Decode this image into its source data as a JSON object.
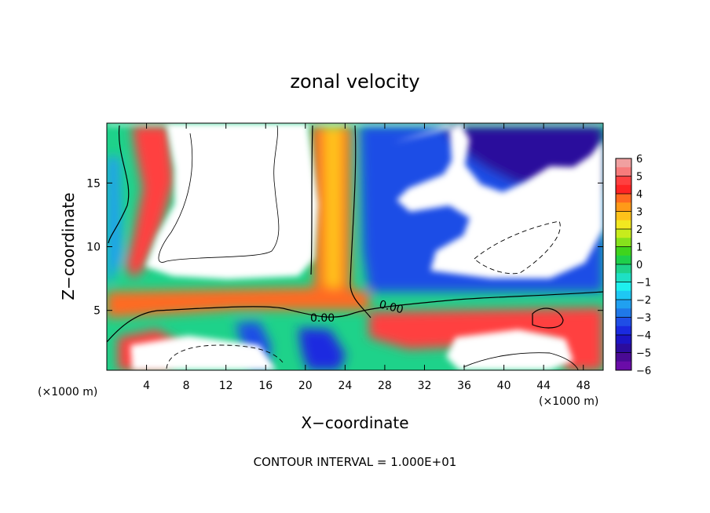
{
  "chart_data": {
    "type": "heatmap",
    "title": "zonal velocity",
    "xlabel": "X−coordinate",
    "ylabel": "Z−coordinate",
    "x_unit": "(×1000 m)",
    "y_unit": "(×1000 m)",
    "xlim": [
      0,
      50
    ],
    "ylim": [
      0.3,
      19.7
    ],
    "x_ticks": [
      "4",
      "8",
      "12",
      "16",
      "20",
      "24",
      "28",
      "32",
      "36",
      "40",
      "44",
      "48"
    ],
    "y_ticks": [
      "5",
      "10",
      "15"
    ],
    "colorbar": {
      "range": [
        -6,
        6
      ],
      "ticks": [
        "6",
        "5",
        "4",
        "3",
        "2",
        "1",
        "0",
        "−1",
        "−2",
        "−3",
        "−4",
        "−5",
        "−6"
      ],
      "levels": [
        {
          "value": 6,
          "color": "#f0a0a0"
        },
        {
          "value": 5.5,
          "color": "#f77b7b"
        },
        {
          "value": 5,
          "color": "#ff4040"
        },
        {
          "value": 4.5,
          "color": "#ff2424"
        },
        {
          "value": 4,
          "color": "#ff6a20"
        },
        {
          "value": 3.5,
          "color": "#ff9a18"
        },
        {
          "value": 3,
          "color": "#ffc21a"
        },
        {
          "value": 2.5,
          "color": "#f2e820"
        },
        {
          "value": 2,
          "color": "#c8ec1c"
        },
        {
          "value": 1.5,
          "color": "#86e21c"
        },
        {
          "value": 1,
          "color": "#3fd41c"
        },
        {
          "value": 0.5,
          "color": "#1ecf4a"
        },
        {
          "value": 0,
          "color": "#1ed28a"
        },
        {
          "value": -0.5,
          "color": "#1ee0c4"
        },
        {
          "value": -1,
          "color": "#1ef0ee"
        },
        {
          "value": -1.5,
          "color": "#1ec8f4"
        },
        {
          "value": -2,
          "color": "#20a0f0"
        },
        {
          "value": -2.5,
          "color": "#1f78e8"
        },
        {
          "value": -3,
          "color": "#1f4ee6"
        },
        {
          "value": -3.5,
          "color": "#1a2ae0"
        },
        {
          "value": -4,
          "color": "#1c14c4"
        },
        {
          "value": -4.5,
          "color": "#2c0c9c"
        },
        {
          "value": -5,
          "color": "#4a0a94"
        },
        {
          "value": -5.5,
          "color": "#6a0ca8"
        },
        {
          "value": -6,
          "color": "#8a14b4"
        }
      ]
    },
    "contour_labels": [
      "0.00",
      "0.00"
    ],
    "contour_interval_text": "CONTOUR INTERVAL =  1.000E+01",
    "grid": false
  }
}
